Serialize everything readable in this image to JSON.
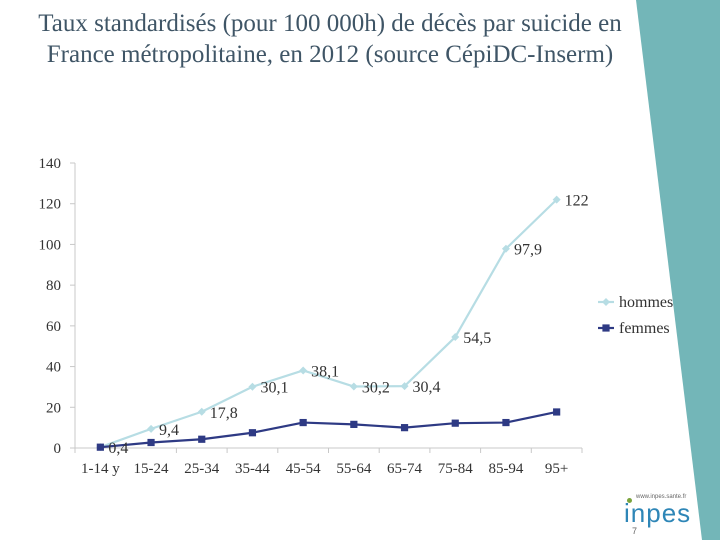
{
  "slide": {
    "title": "Taux standardisés (pour 100 000h) de décès par suicide en France métropolitaine, en 2012 (source CépiDC-Inserm)",
    "page_number": "7"
  },
  "logo": {
    "word": "inpes",
    "url": "www.inpes.sante.fr"
  },
  "colors": {
    "hommes": "#b7dde4",
    "femmes": "#2e3a84",
    "axis": "#c8c8c8",
    "accent": "#73b6b8"
  },
  "chart_data": {
    "type": "line",
    "title": "",
    "xlabel": "",
    "ylabel": "",
    "categories": [
      "1-14 y",
      "15-24",
      "25-34",
      "35-44",
      "45-54",
      "55-64",
      "65-74",
      "75-84",
      "85-94",
      "95+"
    ],
    "ylim": [
      0,
      140
    ],
    "yticks": [
      0,
      20,
      40,
      60,
      80,
      100,
      120,
      140
    ],
    "grid": false,
    "legend_position": "right",
    "series": [
      {
        "name": "hommes",
        "values": [
          0.4,
          9.4,
          17.8,
          30.1,
          38.1,
          30.2,
          30.4,
          54.5,
          97.9,
          122
        ],
        "labels": [
          "",
          "9,4",
          "17,8",
          "30,1",
          "38,1",
          "30,2",
          "30,4",
          "54,5",
          "97,9",
          "122"
        ]
      },
      {
        "name": "femmes",
        "values": [
          0.4,
          2.7,
          4.3,
          7.5,
          12.5,
          11.6,
          10.0,
          12.2,
          12.5,
          17.7
        ],
        "labels": [
          "0,4",
          "",
          "",
          "",
          "",
          "",
          "",
          "",
          "",
          ""
        ]
      }
    ]
  }
}
